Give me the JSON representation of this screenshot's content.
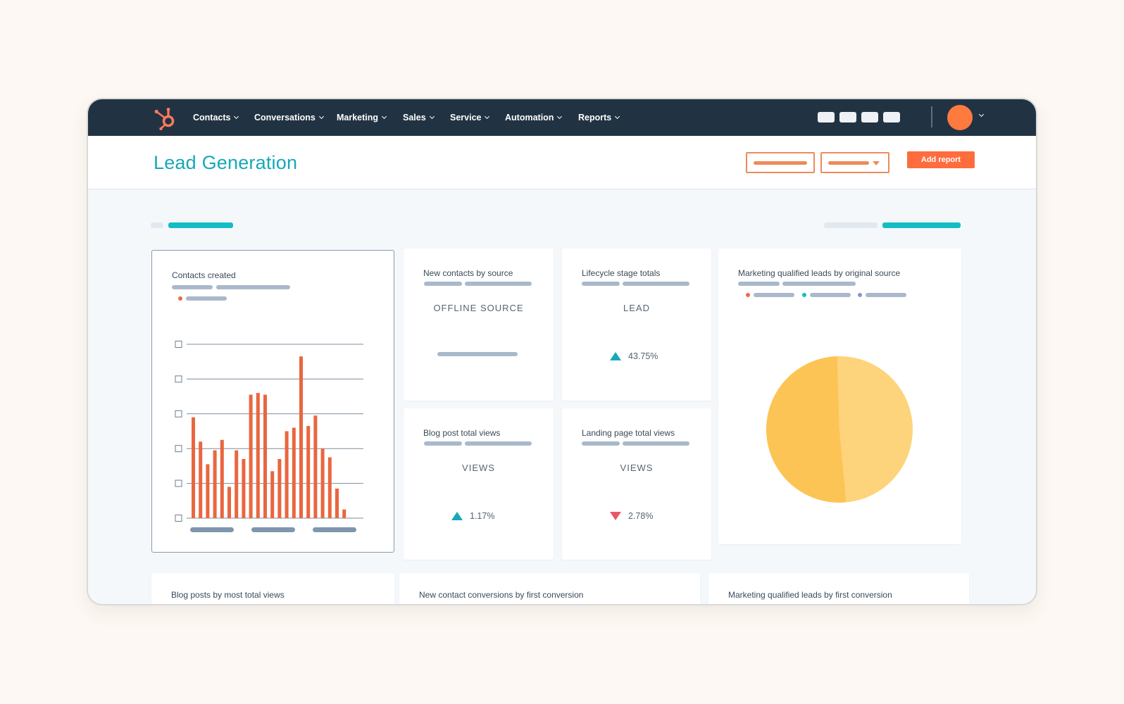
{
  "nav": {
    "items": [
      {
        "label": "Contacts"
      },
      {
        "label": "Conversations"
      },
      {
        "label": "Marketing"
      },
      {
        "label": "Sales"
      },
      {
        "label": "Service"
      },
      {
        "label": "Automation"
      },
      {
        "label": "Reports"
      }
    ]
  },
  "header": {
    "title": "Lead Generation",
    "add_report_label": "Add report"
  },
  "colors": {
    "nav_bg": "#213343",
    "accent_teal": "#16a8b8",
    "accent_orange": "#ff6c3d",
    "bar_color": "#e9663f",
    "pie_light": "#fdd47c",
    "pie_dark": "#fcc454",
    "up": "#18a8b8",
    "down": "#e9566b"
  },
  "icons": {
    "logo": "hubspot-sprocket-icon",
    "avatar": "user-avatar",
    "trend_up": "triangle-up-icon",
    "trend_down": "triangle-down-icon"
  },
  "cards": {
    "contacts_created": {
      "title": "Contacts created"
    },
    "new_contacts_by_source": {
      "title": "New contacts by source",
      "metric_label": "OFFLINE SOURCE"
    },
    "lifecycle_stage_totals": {
      "title": "Lifecycle stage totals",
      "metric_label": "LEAD",
      "change": "43.75%",
      "direction": "up"
    },
    "mql_by_original_source": {
      "title": "Marketing qualified leads by original source"
    },
    "blog_post_total_views": {
      "title": "Blog post total views",
      "metric_label": "VIEWS",
      "change": "1.17%",
      "direction": "up"
    },
    "landing_page_total_views": {
      "title": "Landing page total views",
      "metric_label": "VIEWS",
      "change": "2.78%",
      "direction": "down"
    },
    "blog_posts_by_most_total_views": {
      "title": "Blog posts by most total views"
    },
    "new_contact_conversions": {
      "title": "New contact conversions by first conversion"
    },
    "mql_by_first_conversion": {
      "title": "Marketing qualified leads by first conversion"
    }
  },
  "chart_data": [
    {
      "type": "bar",
      "values": [
        58,
        44,
        31,
        39,
        45,
        18,
        39,
        34,
        71,
        72,
        71,
        27,
        34,
        50,
        52,
        93,
        53,
        59,
        40,
        35,
        17,
        5
      ],
      "ylim": [
        0,
        100
      ],
      "grid": true,
      "y_ticks": 6
    },
    {
      "type": "pie",
      "values": [
        49,
        51
      ],
      "colors": [
        "#fdd47c",
        "#fcc454"
      ]
    }
  ]
}
